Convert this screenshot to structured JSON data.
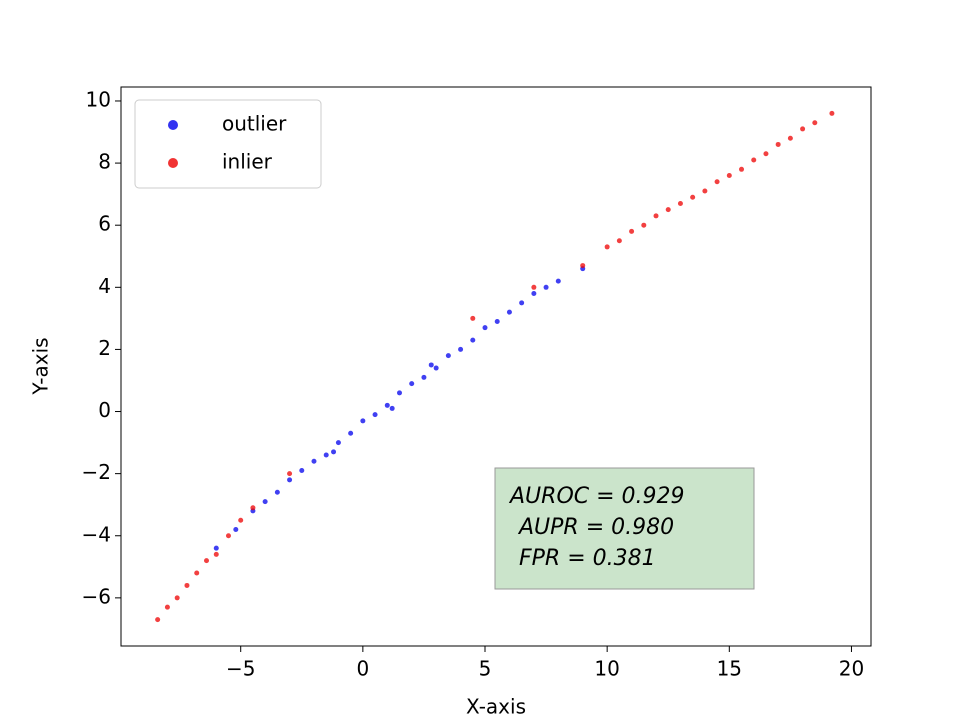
{
  "chart_data": {
    "type": "scatter",
    "x_label": "X-axis",
    "y_label": "Y-axis",
    "xlim": [
      -9.9,
      20.8
    ],
    "ylim": [
      -7.55,
      10.45
    ],
    "xticks": [
      {
        "value": -5,
        "label": "−5"
      },
      0,
      5,
      10,
      15,
      20
    ],
    "yticks": [
      {
        "value": -6,
        "label": "−6"
      },
      {
        "value": -4,
        "label": "−4"
      },
      {
        "value": -2,
        "label": "−2"
      },
      0,
      2,
      4,
      6,
      8,
      10
    ],
    "legend": "upper left",
    "annotations": [
      "AUROC = 0.929",
      "AUPR = 0.980",
      "FPR = 0.381"
    ],
    "series": [
      {
        "name": "outlier",
        "color": "#0000ee",
        "x": [
          -6,
          -5.2,
          -4.5,
          -4,
          -3.5,
          -3,
          -2.5,
          -2,
          -1.5,
          -1,
          -0.5,
          0,
          0.5,
          1,
          1.5,
          2,
          2.5,
          3,
          3.5,
          4,
          4.5,
          5,
          5.5,
          6,
          6.5,
          7,
          7.5,
          8,
          9,
          1.2,
          2.8,
          -1.2
        ],
        "values": [
          -4.4,
          -3.8,
          -3.2,
          -2.9,
          -2.6,
          -2.2,
          -1.9,
          -1.6,
          -1.4,
          -1.0,
          -0.7,
          -0.3,
          -0.1,
          0.2,
          0.6,
          0.9,
          1.1,
          1.4,
          1.8,
          2.0,
          2.3,
          2.7,
          2.9,
          3.2,
          3.5,
          3.8,
          4.0,
          4.2,
          4.6,
          0.1,
          1.5,
          -1.3
        ]
      },
      {
        "name": "inlier",
        "color": "#ee0000",
        "x": [
          -8.4,
          -8,
          -7.6,
          -7.2,
          -6.8,
          -6.4,
          -6,
          -5.5,
          -5,
          -4.5,
          -3,
          4.5,
          7,
          9,
          10,
          10.5,
          11,
          11.5,
          12,
          12.5,
          13,
          13.5,
          14,
          14.5,
          15,
          15.5,
          16,
          16.5,
          17,
          17.5,
          18,
          18.5,
          19.2
        ],
        "values": [
          -6.7,
          -6.3,
          -6.0,
          -5.6,
          -5.2,
          -4.8,
          -4.6,
          -4.0,
          -3.5,
          -3.1,
          -2.0,
          3.0,
          4.0,
          4.7,
          5.3,
          5.5,
          5.8,
          6.0,
          6.3,
          6.5,
          6.7,
          6.9,
          7.1,
          7.4,
          7.6,
          7.8,
          8.1,
          8.3,
          8.6,
          8.8,
          9.1,
          9.3,
          9.6
        ]
      }
    ]
  }
}
